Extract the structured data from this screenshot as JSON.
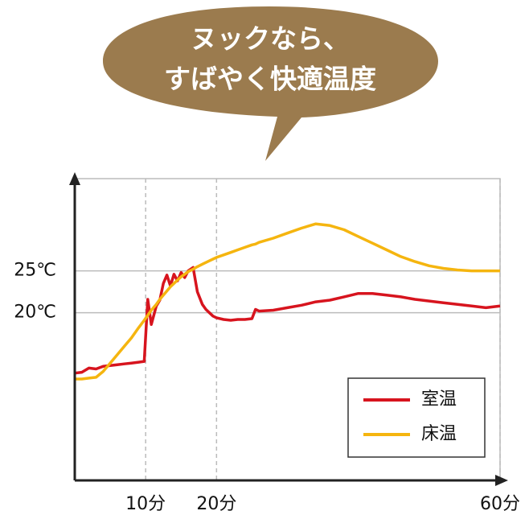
{
  "chart_data": {
    "type": "line",
    "title_lines": [
      "ヌックなら、",
      "すばやく快適温度"
    ],
    "x": [
      0,
      1,
      2,
      3,
      4,
      5,
      6,
      7,
      8,
      9,
      9.8,
      10.3,
      10.8,
      11.5,
      12,
      12.5,
      13,
      13.5,
      14,
      14.5,
      15,
      15.5,
      16,
      16.7,
      17.3,
      18,
      18.5,
      19,
      19.5,
      20,
      21,
      22,
      23,
      24,
      25,
      25.5,
      26,
      28,
      30,
      32,
      34,
      36,
      38,
      40,
      42,
      44,
      46,
      48,
      50,
      52,
      54,
      56,
      58,
      60
    ],
    "series": [
      {
        "name": "室温",
        "color": "#d7141e",
        "values": [
          12.8,
          12.9,
          13.4,
          13.3,
          13.6,
          13.7,
          13.8,
          13.9,
          14.0,
          14.1,
          14.2,
          21.6,
          18.6,
          20.8,
          21.5,
          23.5,
          24.5,
          23.2,
          24.6,
          23.8,
          24.8,
          24.2,
          25.0,
          25.4,
          22.5,
          21.0,
          20.4,
          20.0,
          19.6,
          19.4,
          19.2,
          19.1,
          19.2,
          19.2,
          19.3,
          20.4,
          20.2,
          20.3,
          20.6,
          20.9,
          21.3,
          21.5,
          21.9,
          22.3,
          22.3,
          22.1,
          21.9,
          21.6,
          21.4,
          21.2,
          21.0,
          20.8,
          20.6,
          20.8
        ]
      },
      {
        "name": "床温",
        "color": "#f5b50f",
        "values": [
          12.1,
          12.1,
          12.2,
          12.3,
          13.0,
          14.0,
          15.0,
          16.0,
          17.0,
          18.2,
          19.1,
          19.7,
          20.3,
          21.0,
          21.6,
          22.1,
          22.6,
          23.1,
          23.5,
          23.9,
          24.3,
          24.6,
          24.9,
          25.2,
          25.5,
          25.8,
          26.0,
          26.2,
          26.4,
          26.6,
          26.9,
          27.2,
          27.5,
          27.8,
          28.1,
          28.2,
          28.4,
          28.9,
          29.5,
          30.1,
          30.6,
          30.4,
          29.9,
          29.1,
          28.3,
          27.5,
          26.7,
          26.1,
          25.6,
          25.3,
          25.1,
          25.0,
          25.0,
          25.0
        ]
      }
    ],
    "xlim": [
      0,
      60
    ],
    "xticks": [
      {
        "value": 10,
        "label": "10分"
      },
      {
        "value": 20,
        "label": "20分"
      },
      {
        "value": 60,
        "label": "60分"
      }
    ],
    "ylim": [
      0,
      36
    ],
    "yticks": [
      {
        "value": 20,
        "label": "20℃"
      },
      {
        "value": 25,
        "label": "25℃"
      }
    ],
    "grid": true
  }
}
